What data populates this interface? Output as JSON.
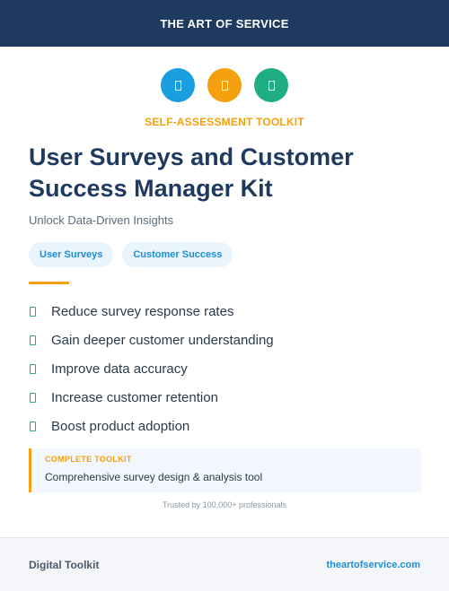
{
  "colors": {
    "navy": "#1e3a5f",
    "blue": "#1a9ee0",
    "orange": "#f5a00f",
    "green": "#1fae84"
  },
  "header": {
    "brand": "THE ART OF SERVICE"
  },
  "icons": [
    {
      "name": "document-icon",
      "color": "#1a9ee0"
    },
    {
      "name": "document-icon",
      "color": "#f5a00f"
    },
    {
      "name": "document-icon",
      "color": "#1fae84"
    }
  ],
  "eyebrow": "SELF-ASSESSMENT TOOLKIT",
  "title_line1": "User Surveys and Customer",
  "title_line2": "Success Manager Kit",
  "subtitle": "Unlock Data-Driven Insights",
  "tags": [
    "User Surveys",
    "Customer Success"
  ],
  "benefits": [
    "Reduce survey response rates",
    "Gain deeper customer understanding",
    "Improve data accuracy",
    "Increase customer retention",
    "Boost product adoption"
  ],
  "callout": {
    "label": "COMPLETE TOOLKIT",
    "text": "Comprehensive survey design & analysis tool"
  },
  "trust": "Trusted by 100,000+ professionals",
  "footer": {
    "left": "Digital Toolkit",
    "right": "theartofservice.com"
  }
}
